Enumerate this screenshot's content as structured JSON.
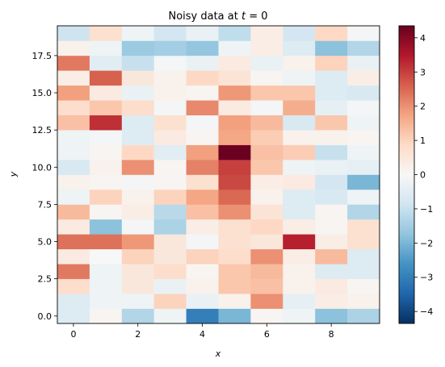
{
  "chart_data": {
    "type": "heatmap",
    "title": "Noisy data at t = 0",
    "title_prefix": "Noisy data at ",
    "title_var": "t",
    "title_suffix": " = 0",
    "xlabel": "x",
    "ylabel": "y",
    "colormap": "RdBu_r",
    "x": [
      0,
      1,
      2,
      3,
      4,
      5,
      6,
      7,
      8,
      9
    ],
    "y": [
      0,
      1,
      2,
      3,
      4,
      5,
      6,
      7,
      8,
      9,
      10,
      11,
      12,
      13,
      14,
      15,
      16,
      17,
      18,
      19
    ],
    "xlim": [
      -0.5,
      9.5
    ],
    "ylim": [
      -0.5,
      19.5
    ],
    "clim": [
      -4.35,
      4.35
    ],
    "x_ticks": [
      0,
      2,
      4,
      6,
      8
    ],
    "y_ticks": [
      0.0,
      2.5,
      5.0,
      7.5,
      10.0,
      12.5,
      15.0,
      17.5
    ],
    "y_tick_labels": [
      "0.0",
      "2.5",
      "5.0",
      "7.5",
      "10.0",
      "12.5",
      "15.0",
      "17.5"
    ],
    "colorbar_ticks": [
      -4,
      -3,
      -2,
      -1,
      0,
      1,
      2,
      3,
      4
    ],
    "values": [
      [
        -0.6,
        0.1,
        -1.3,
        -0.2,
        -3.0,
        -2.0,
        0.1,
        -0.2,
        -1.8,
        -1.4
      ],
      [
        -0.6,
        -0.2,
        -0.2,
        1.0,
        -0.3,
        0.2,
        2.0,
        -0.4,
        0.3,
        0.2
      ],
      [
        0.8,
        -0.2,
        0.5,
        -0.3,
        0.2,
        1.2,
        1.3,
        0.2,
        0.4,
        0.1
      ],
      [
        2.3,
        -0.2,
        0.5,
        0.8,
        0.1,
        1.2,
        1.4,
        0.2,
        -0.6,
        -0.6
      ],
      [
        0.4,
        0.0,
        1.0,
        0.5,
        1.0,
        0.8,
        2.0,
        0.3,
        1.4,
        -0.6
      ],
      [
        2.4,
        2.4,
        1.9,
        0.5,
        -0.1,
        0.7,
        0.5,
        3.4,
        0.3,
        0.7
      ],
      [
        0.4,
        -1.8,
        -0.1,
        -1.4,
        0.3,
        0.7,
        0.9,
        0.3,
        0.1,
        0.7
      ],
      [
        1.4,
        0.1,
        0.3,
        -1.2,
        1.3,
        2.0,
        0.6,
        -0.6,
        0.1,
        -1.3
      ],
      [
        -0.2,
        1.0,
        0.2,
        1.0,
        1.7,
        2.5,
        0.2,
        -0.6,
        -0.7,
        -0.2
      ],
      [
        0.2,
        0.1,
        -0.1,
        0.1,
        0.7,
        2.9,
        0.3,
        0.4,
        -0.8,
        -2.0
      ],
      [
        -0.7,
        0.2,
        2.0,
        0.1,
        2.2,
        3.0,
        1.2,
        -0.2,
        -0.3,
        -0.4
      ],
      [
        -0.2,
        0.1,
        0.9,
        -0.5,
        1.8,
        4.3,
        1.3,
        1.1,
        -1.0,
        -0.2
      ],
      [
        -0.2,
        -0.1,
        -0.6,
        0.4,
        0.1,
        1.7,
        1.1,
        0.2,
        0.2,
        0.1
      ],
      [
        1.3,
        3.2,
        -0.6,
        0.7,
        -0.1,
        1.8,
        1.4,
        -0.7,
        1.2,
        -0.2
      ],
      [
        0.8,
        1.2,
        0.8,
        -0.1,
        2.1,
        0.4,
        -0.1,
        1.6,
        -0.4,
        -0.1
      ],
      [
        1.8,
        0.4,
        -0.3,
        0.2,
        0.1,
        1.9,
        1.2,
        1.2,
        -0.6,
        -0.7
      ],
      [
        0.3,
        2.6,
        0.5,
        0.2,
        0.9,
        0.6,
        0.1,
        -0.2,
        -0.6,
        0.3
      ],
      [
        2.3,
        -0.5,
        -1.0,
        -0.1,
        -0.3,
        0.4,
        -0.3,
        0.2,
        1.0,
        -0.3
      ],
      [
        0.2,
        -0.2,
        -1.6,
        -1.5,
        -1.7,
        -0.2,
        0.3,
        -0.6,
        -1.8,
        -1.3
      ],
      [
        -0.9,
        0.7,
        -0.2,
        -0.8,
        -0.3,
        -1.1,
        0.3,
        -0.8,
        0.9,
        -0.1
      ]
    ]
  }
}
